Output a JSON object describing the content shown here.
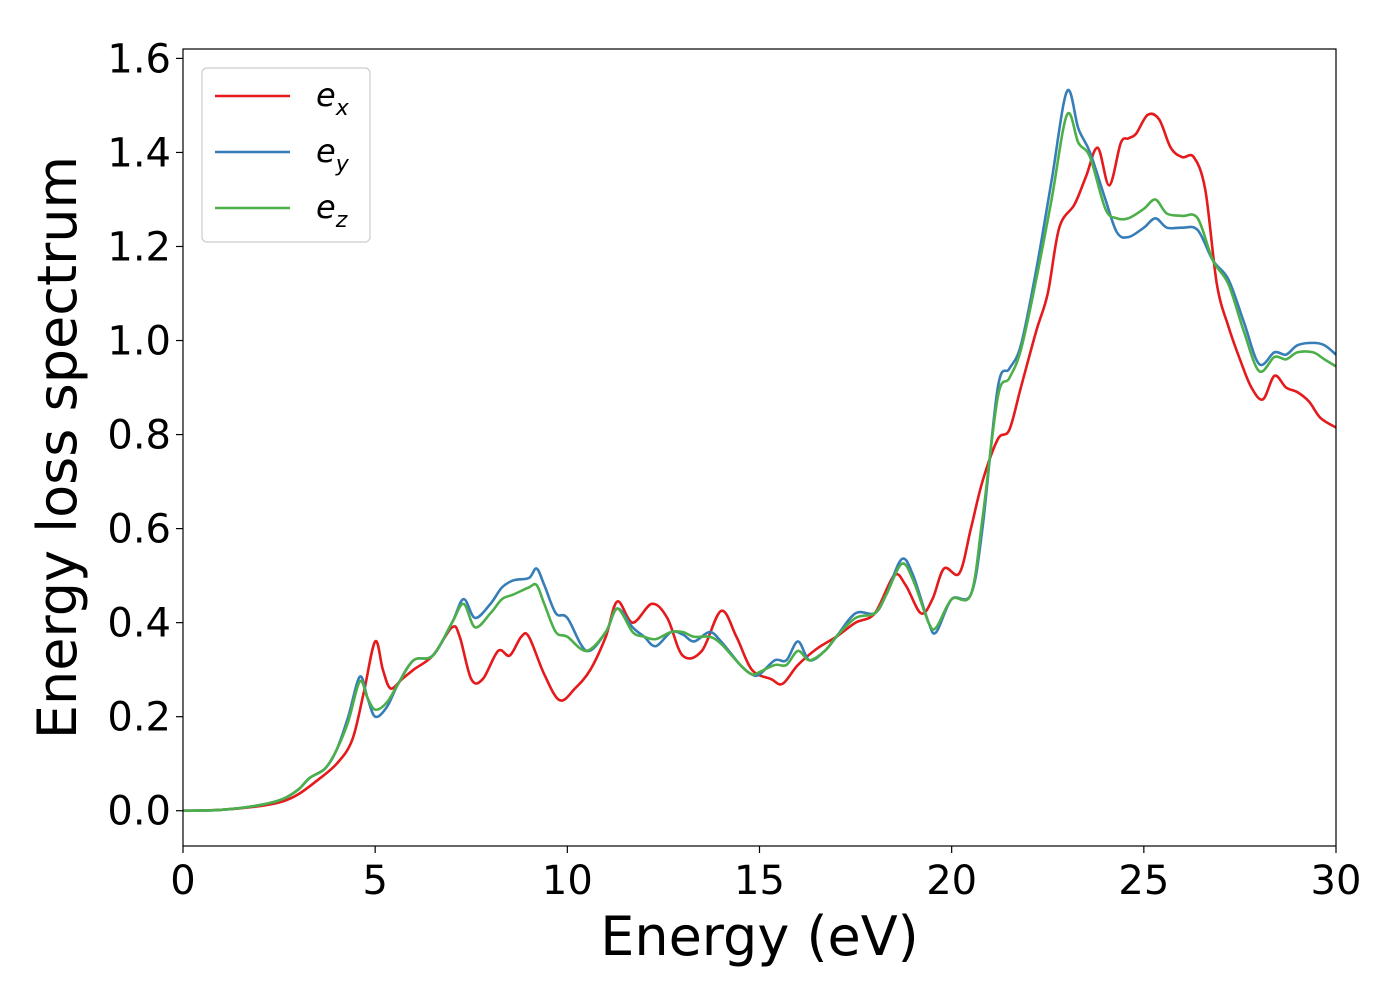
{
  "chart_data": {
    "type": "line",
    "title": "",
    "xlabel": "Energy (eV)",
    "ylabel": "Energy loss spectrum",
    "xlim": [
      0,
      30
    ],
    "ylim": [
      -0.075,
      1.62
    ],
    "x_ticks": [
      0,
      5,
      10,
      15,
      20,
      25,
      30
    ],
    "x_tick_labels": [
      "0",
      "5",
      "10",
      "15",
      "20",
      "25",
      "30"
    ],
    "y_ticks": [
      0.0,
      0.2,
      0.4,
      0.6,
      0.8,
      1.0,
      1.2,
      1.4,
      1.6
    ],
    "y_tick_labels": [
      "0.0",
      "0.2",
      "0.4",
      "0.6",
      "0.8",
      "1.0",
      "1.2",
      "1.4",
      "1.6"
    ],
    "grid": false,
    "legend_position": "top-left",
    "series": [
      {
        "name": "e_x",
        "legend_base": "e",
        "legend_sub": "x",
        "color": "#e41a1c",
        "points": [
          [
            0,
            0
          ],
          [
            1,
            0.002
          ],
          [
            2,
            0.01
          ],
          [
            2.6,
            0.02
          ],
          [
            3,
            0.035
          ],
          [
            3.5,
            0.065
          ],
          [
            4,
            0.1
          ],
          [
            4.4,
            0.15
          ],
          [
            4.7,
            0.25
          ],
          [
            5,
            0.36
          ],
          [
            5.2,
            0.3
          ],
          [
            5.4,
            0.26
          ],
          [
            5.7,
            0.28
          ],
          [
            6,
            0.3
          ],
          [
            6.5,
            0.33
          ],
          [
            7,
            0.39
          ],
          [
            7.2,
            0.37
          ],
          [
            7.5,
            0.28
          ],
          [
            7.8,
            0.28
          ],
          [
            8.2,
            0.34
          ],
          [
            8.5,
            0.33
          ],
          [
            8.8,
            0.37
          ],
          [
            9,
            0.37
          ],
          [
            9.4,
            0.29
          ],
          [
            9.8,
            0.235
          ],
          [
            10.2,
            0.26
          ],
          [
            10.6,
            0.3
          ],
          [
            11,
            0.37
          ],
          [
            11.3,
            0.445
          ],
          [
            11.7,
            0.4
          ],
          [
            12.2,
            0.44
          ],
          [
            12.6,
            0.41
          ],
          [
            13,
            0.33
          ],
          [
            13.5,
            0.34
          ],
          [
            14,
            0.425
          ],
          [
            14.4,
            0.37
          ],
          [
            14.8,
            0.3
          ],
          [
            15.3,
            0.28
          ],
          [
            15.6,
            0.27
          ],
          [
            16,
            0.31
          ],
          [
            16.5,
            0.345
          ],
          [
            17,
            0.37
          ],
          [
            17.5,
            0.4
          ],
          [
            18,
            0.42
          ],
          [
            18.5,
            0.5
          ],
          [
            18.8,
            0.48
          ],
          [
            19.2,
            0.42
          ],
          [
            19.5,
            0.45
          ],
          [
            19.8,
            0.515
          ],
          [
            20.2,
            0.505
          ],
          [
            20.5,
            0.6
          ],
          [
            20.8,
            0.7
          ],
          [
            21.2,
            0.79
          ],
          [
            21.5,
            0.81
          ],
          [
            21.8,
            0.9
          ],
          [
            22.2,
            1.02
          ],
          [
            22.5,
            1.1
          ],
          [
            22.8,
            1.24
          ],
          [
            23.2,
            1.29
          ],
          [
            23.5,
            1.35
          ],
          [
            23.8,
            1.41
          ],
          [
            24.1,
            1.33
          ],
          [
            24.4,
            1.42
          ],
          [
            24.6,
            1.43
          ],
          [
            24.8,
            1.44
          ],
          [
            25.1,
            1.48
          ],
          [
            25.4,
            1.47
          ],
          [
            25.7,
            1.41
          ],
          [
            26,
            1.39
          ],
          [
            26.3,
            1.39
          ],
          [
            26.6,
            1.32
          ],
          [
            26.9,
            1.12
          ],
          [
            27.2,
            1.03
          ],
          [
            27.5,
            0.96
          ],
          [
            27.8,
            0.9
          ],
          [
            28.1,
            0.875
          ],
          [
            28.4,
            0.925
          ],
          [
            28.7,
            0.9
          ],
          [
            29,
            0.89
          ],
          [
            29.3,
            0.87
          ],
          [
            29.6,
            0.835
          ],
          [
            30,
            0.815
          ]
        ]
      },
      {
        "name": "e_y",
        "legend_base": "e",
        "legend_sub": "y",
        "color": "#377eb8",
        "points": [
          [
            0,
            0
          ],
          [
            1,
            0.002
          ],
          [
            2,
            0.012
          ],
          [
            2.6,
            0.025
          ],
          [
            3,
            0.045
          ],
          [
            3.3,
            0.07
          ],
          [
            3.7,
            0.09
          ],
          [
            4,
            0.13
          ],
          [
            4.3,
            0.2
          ],
          [
            4.6,
            0.285
          ],
          [
            4.8,
            0.24
          ],
          [
            5,
            0.2
          ],
          [
            5.3,
            0.22
          ],
          [
            5.6,
            0.27
          ],
          [
            6,
            0.32
          ],
          [
            6.5,
            0.33
          ],
          [
            7,
            0.4
          ],
          [
            7.3,
            0.45
          ],
          [
            7.6,
            0.41
          ],
          [
            8,
            0.44
          ],
          [
            8.3,
            0.475
          ],
          [
            8.6,
            0.49
          ],
          [
            9,
            0.495
          ],
          [
            9.2,
            0.515
          ],
          [
            9.4,
            0.48
          ],
          [
            9.7,
            0.42
          ],
          [
            10,
            0.41
          ],
          [
            10.5,
            0.34
          ],
          [
            11,
            0.38
          ],
          [
            11.3,
            0.43
          ],
          [
            11.7,
            0.39
          ],
          [
            12,
            0.37
          ],
          [
            12.3,
            0.35
          ],
          [
            12.7,
            0.38
          ],
          [
            13,
            0.375
          ],
          [
            13.3,
            0.36
          ],
          [
            13.7,
            0.38
          ],
          [
            14,
            0.36
          ],
          [
            14.5,
            0.31
          ],
          [
            14.8,
            0.29
          ],
          [
            15,
            0.29
          ],
          [
            15.4,
            0.32
          ],
          [
            15.7,
            0.32
          ],
          [
            16,
            0.36
          ],
          [
            16.3,
            0.32
          ],
          [
            16.7,
            0.34
          ],
          [
            17,
            0.37
          ],
          [
            17.5,
            0.42
          ],
          [
            18,
            0.42
          ],
          [
            18.3,
            0.46
          ],
          [
            18.7,
            0.535
          ],
          [
            19,
            0.5
          ],
          [
            19.4,
            0.4
          ],
          [
            19.6,
            0.38
          ],
          [
            20,
            0.45
          ],
          [
            20.5,
            0.46
          ],
          [
            20.8,
            0.6
          ],
          [
            21.2,
            0.9
          ],
          [
            21.5,
            0.94
          ],
          [
            21.8,
            0.99
          ],
          [
            22.2,
            1.15
          ],
          [
            22.6,
            1.34
          ],
          [
            23,
            1.53
          ],
          [
            23.3,
            1.45
          ],
          [
            23.6,
            1.4
          ],
          [
            24,
            1.3
          ],
          [
            24.3,
            1.23
          ],
          [
            24.6,
            1.22
          ],
          [
            25,
            1.24
          ],
          [
            25.3,
            1.26
          ],
          [
            25.6,
            1.24
          ],
          [
            26,
            1.24
          ],
          [
            26.4,
            1.235
          ],
          [
            26.8,
            1.17
          ],
          [
            27.2,
            1.13
          ],
          [
            27.6,
            1.04
          ],
          [
            28,
            0.95
          ],
          [
            28.4,
            0.975
          ],
          [
            28.7,
            0.97
          ],
          [
            29,
            0.99
          ],
          [
            29.4,
            0.995
          ],
          [
            29.7,
            0.99
          ],
          [
            30,
            0.97
          ]
        ]
      },
      {
        "name": "e_z",
        "legend_base": "e",
        "legend_sub": "z",
        "color": "#4daf4a",
        "points": [
          [
            0,
            0
          ],
          [
            1,
            0.002
          ],
          [
            2,
            0.012
          ],
          [
            2.6,
            0.025
          ],
          [
            3,
            0.045
          ],
          [
            3.3,
            0.07
          ],
          [
            3.7,
            0.09
          ],
          [
            4,
            0.13
          ],
          [
            4.3,
            0.19
          ],
          [
            4.6,
            0.275
          ],
          [
            4.8,
            0.24
          ],
          [
            5,
            0.215
          ],
          [
            5.3,
            0.23
          ],
          [
            5.6,
            0.27
          ],
          [
            6,
            0.32
          ],
          [
            6.5,
            0.33
          ],
          [
            7,
            0.4
          ],
          [
            7.3,
            0.44
          ],
          [
            7.6,
            0.39
          ],
          [
            8,
            0.42
          ],
          [
            8.3,
            0.45
          ],
          [
            8.6,
            0.46
          ],
          [
            9,
            0.475
          ],
          [
            9.2,
            0.48
          ],
          [
            9.4,
            0.44
          ],
          [
            9.7,
            0.38
          ],
          [
            10,
            0.37
          ],
          [
            10.5,
            0.34
          ],
          [
            11,
            0.38
          ],
          [
            11.3,
            0.43
          ],
          [
            11.7,
            0.38
          ],
          [
            12,
            0.37
          ],
          [
            12.3,
            0.365
          ],
          [
            12.7,
            0.38
          ],
          [
            13,
            0.38
          ],
          [
            13.3,
            0.37
          ],
          [
            13.7,
            0.37
          ],
          [
            14,
            0.355
          ],
          [
            14.5,
            0.31
          ],
          [
            14.8,
            0.29
          ],
          [
            15,
            0.295
          ],
          [
            15.4,
            0.31
          ],
          [
            15.7,
            0.31
          ],
          [
            16,
            0.34
          ],
          [
            16.3,
            0.32
          ],
          [
            16.7,
            0.34
          ],
          [
            17,
            0.37
          ],
          [
            17.5,
            0.41
          ],
          [
            18,
            0.42
          ],
          [
            18.3,
            0.46
          ],
          [
            18.7,
            0.525
          ],
          [
            19,
            0.49
          ],
          [
            19.4,
            0.4
          ],
          [
            19.6,
            0.39
          ],
          [
            20,
            0.45
          ],
          [
            20.5,
            0.46
          ],
          [
            20.8,
            0.62
          ],
          [
            21.2,
            0.88
          ],
          [
            21.5,
            0.92
          ],
          [
            21.8,
            0.98
          ],
          [
            22.2,
            1.13
          ],
          [
            22.6,
            1.3
          ],
          [
            23,
            1.48
          ],
          [
            23.3,
            1.42
          ],
          [
            23.6,
            1.39
          ],
          [
            24,
            1.28
          ],
          [
            24.3,
            1.26
          ],
          [
            24.6,
            1.26
          ],
          [
            25,
            1.28
          ],
          [
            25.3,
            1.3
          ],
          [
            25.6,
            1.27
          ],
          [
            26,
            1.265
          ],
          [
            26.4,
            1.26
          ],
          [
            26.8,
            1.17
          ],
          [
            27.2,
            1.12
          ],
          [
            27.6,
            1.02
          ],
          [
            28,
            0.935
          ],
          [
            28.4,
            0.965
          ],
          [
            28.7,
            0.96
          ],
          [
            29,
            0.975
          ],
          [
            29.4,
            0.975
          ],
          [
            29.7,
            0.96
          ],
          [
            30,
            0.945
          ]
        ]
      }
    ]
  }
}
